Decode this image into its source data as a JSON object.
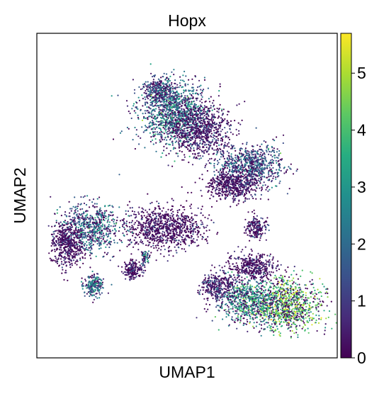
{
  "chart_data": {
    "type": "scatter",
    "title": "Hopx",
    "xlabel": "UMAP1",
    "ylabel": "UMAP2",
    "x_ticks_shown": false,
    "y_ticks_shown": false,
    "color_scale": {
      "name": "viridis",
      "range": [
        0,
        5.7
      ],
      "ticks": [
        "0",
        "1",
        "2",
        "3",
        "4",
        "5"
      ],
      "tick_values": [
        0,
        1,
        2,
        3,
        4,
        5
      ],
      "colors": [
        "#440154",
        "#472c7a",
        "#3b518b",
        "#2c718e",
        "#21908d",
        "#27ad81",
        "#5cc863",
        "#aadc32",
        "#fde725"
      ]
    },
    "xlim": [
      0,
      100
    ],
    "ylim": [
      0,
      100
    ],
    "clusters": [
      {
        "id": "top-large",
        "cx": 46,
        "cy": 75,
        "rx": 11,
        "ry": 9,
        "n": 1200,
        "expr": 2.6
      },
      {
        "id": "top-lobe",
        "cx": 41,
        "cy": 82,
        "rx": 5,
        "ry": 4,
        "n": 350,
        "expr": 2.2
      },
      {
        "id": "top-mid",
        "cx": 55,
        "cy": 70,
        "rx": 9,
        "ry": 7,
        "n": 700,
        "expr": 0.5
      },
      {
        "id": "right-upper",
        "cx": 71,
        "cy": 59,
        "rx": 10,
        "ry": 6,
        "n": 800,
        "expr": 2.0
      },
      {
        "id": "right-under",
        "cx": 65,
        "cy": 53,
        "rx": 8,
        "ry": 4,
        "n": 500,
        "expr": 0.3
      },
      {
        "id": "middle",
        "cx": 43,
        "cy": 40,
        "rx": 11,
        "ry": 6,
        "n": 900,
        "expr": 0.2
      },
      {
        "id": "left-a",
        "cx": 18,
        "cy": 40,
        "rx": 9,
        "ry": 7,
        "n": 700,
        "expr": 2.3
      },
      {
        "id": "left-b",
        "cx": 10,
        "cy": 35,
        "rx": 5,
        "ry": 6,
        "n": 450,
        "expr": 0.3
      },
      {
        "id": "left-small",
        "cx": 19,
        "cy": 22,
        "rx": 3,
        "ry": 3,
        "n": 220,
        "expr": 2.5
      },
      {
        "id": "tiny-a",
        "cx": 32,
        "cy": 27,
        "rx": 3,
        "ry": 2.5,
        "n": 180,
        "expr": 0.4
      },
      {
        "id": "tiny-b",
        "cx": 36,
        "cy": 31,
        "rx": 1.2,
        "ry": 2,
        "n": 60,
        "expr": 2.2
      },
      {
        "id": "right-small",
        "cx": 73,
        "cy": 40,
        "rx": 3,
        "ry": 3,
        "n": 180,
        "expr": 0.6
      },
      {
        "id": "bottom-right",
        "cx": 83,
        "cy": 16,
        "rx": 10,
        "ry": 7,
        "n": 1000,
        "expr": 4.4
      },
      {
        "id": "bottom-center",
        "cx": 70,
        "cy": 18,
        "rx": 9,
        "ry": 6,
        "n": 700,
        "expr": 3.2
      },
      {
        "id": "bottom-left-lobe",
        "cx": 60,
        "cy": 22,
        "rx": 5,
        "ry": 4,
        "n": 300,
        "expr": 0.8
      },
      {
        "id": "bottom-upper",
        "cx": 72,
        "cy": 28,
        "rx": 8,
        "ry": 4,
        "n": 400,
        "expr": 0.4
      }
    ]
  }
}
